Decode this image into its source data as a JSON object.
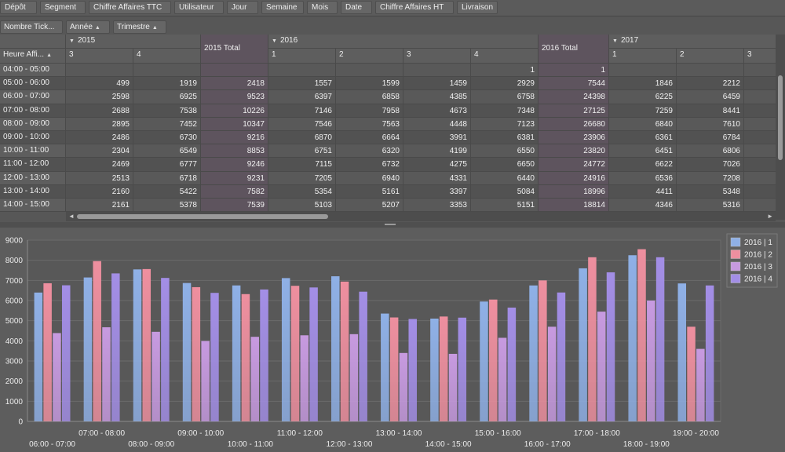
{
  "filter_fields": [
    "Dépôt",
    "Segment",
    "Chiffre Affaires TTC",
    "Utilisateur",
    "Jour",
    "Semaine",
    "Mois",
    "Date",
    "Chiffre Affaires HT",
    "Livraison"
  ],
  "data_field": "Nombre Tick...",
  "column_fields": [
    "Année",
    "Trimestre"
  ],
  "row_field": "Heure Affi...",
  "years": [
    "2015",
    "2016",
    "2017"
  ],
  "col_headers": [
    "3",
    "4",
    "2015 Total",
    "1",
    "2",
    "3",
    "4",
    "2016 Total",
    "1",
    "2",
    "3"
  ],
  "rows": [
    {
      "label": "04:00 - 05:00",
      "cells": [
        "",
        "",
        "",
        "",
        "",
        "",
        "1",
        "1",
        "",
        "",
        ""
      ]
    },
    {
      "label": "05:00 - 06:00",
      "cells": [
        "499",
        "1919",
        "2418",
        "1557",
        "1599",
        "1459",
        "2929",
        "7544",
        "1846",
        "2212",
        ""
      ]
    },
    {
      "label": "06:00 - 07:00",
      "cells": [
        "2598",
        "6925",
        "9523",
        "6397",
        "6858",
        "4385",
        "6758",
        "24398",
        "6225",
        "6459",
        ""
      ]
    },
    {
      "label": "07:00 - 08:00",
      "cells": [
        "2688",
        "7538",
        "10226",
        "7146",
        "7958",
        "4673",
        "7348",
        "27125",
        "7259",
        "8441",
        ""
      ]
    },
    {
      "label": "08:00 - 09:00",
      "cells": [
        "2895",
        "7452",
        "10347",
        "7546",
        "7563",
        "4448",
        "7123",
        "26680",
        "6840",
        "7610",
        ""
      ]
    },
    {
      "label": "09:00 - 10:00",
      "cells": [
        "2486",
        "6730",
        "9216",
        "6870",
        "6664",
        "3991",
        "6381",
        "23906",
        "6361",
        "6784",
        ""
      ]
    },
    {
      "label": "10:00 - 11:00",
      "cells": [
        "2304",
        "6549",
        "8853",
        "6751",
        "6320",
        "4199",
        "6550",
        "23820",
        "6451",
        "6806",
        ""
      ]
    },
    {
      "label": "11:00 - 12:00",
      "cells": [
        "2469",
        "6777",
        "9246",
        "7115",
        "6732",
        "4275",
        "6650",
        "24772",
        "6622",
        "7026",
        ""
      ]
    },
    {
      "label": "12:00 - 13:00",
      "cells": [
        "2513",
        "6718",
        "9231",
        "7205",
        "6940",
        "4331",
        "6440",
        "24916",
        "6536",
        "7208",
        ""
      ]
    },
    {
      "label": "13:00 - 14:00",
      "cells": [
        "2160",
        "5422",
        "7582",
        "5354",
        "5161",
        "3397",
        "5084",
        "18996",
        "4411",
        "5348",
        ""
      ]
    },
    {
      "label": "14:00 - 15:00",
      "cells": [
        "2161",
        "5378",
        "7539",
        "5103",
        "5207",
        "3353",
        "5151",
        "18814",
        "4346",
        "5316",
        ""
      ]
    }
  ],
  "chart_data": {
    "type": "bar",
    "categories": [
      "06:00 - 07:00",
      "07:00 - 08:00",
      "08:00 - 09:00",
      "09:00 - 10:00",
      "10:00 - 11:00",
      "11:00 - 12:00",
      "12:00 - 13:00",
      "13:00 - 14:00",
      "14:00 - 15:00",
      "15:00 - 16:00",
      "16:00 - 17:00",
      "17:00 - 18:00",
      "18:00 - 19:00",
      "19:00 - 20:00"
    ],
    "series": [
      {
        "name": "2016 | 1",
        "values": [
          6397,
          7146,
          7546,
          6870,
          6751,
          7115,
          7205,
          5354,
          5103,
          5950,
          6750,
          7600,
          8250,
          6850
        ]
      },
      {
        "name": "2016 | 2",
        "values": [
          6858,
          7958,
          7563,
          6664,
          6320,
          6732,
          6940,
          5161,
          5207,
          6050,
          7000,
          8150,
          8550,
          4700
        ]
      },
      {
        "name": "2016 | 3",
        "values": [
          4385,
          4673,
          4448,
          3991,
          4199,
          4275,
          4331,
          3397,
          3353,
          4150,
          4700,
          5450,
          6000,
          3600
        ]
      },
      {
        "name": "2016 | 4",
        "values": [
          6758,
          7348,
          7123,
          6381,
          6550,
          6650,
          6440,
          5084,
          5151,
          5650,
          6400,
          7400,
          8150,
          6750
        ]
      }
    ],
    "yticks": [
      "0",
      "1000",
      "2000",
      "3000",
      "4000",
      "5000",
      "6000",
      "7000",
      "8000",
      "9000"
    ],
    "ylim": [
      0,
      9000
    ],
    "grid": true,
    "legend_position": "top-right",
    "colors": [
      "#8fb0e6",
      "#ee8f9f",
      "#c79ae0",
      "#a38ee6"
    ]
  }
}
